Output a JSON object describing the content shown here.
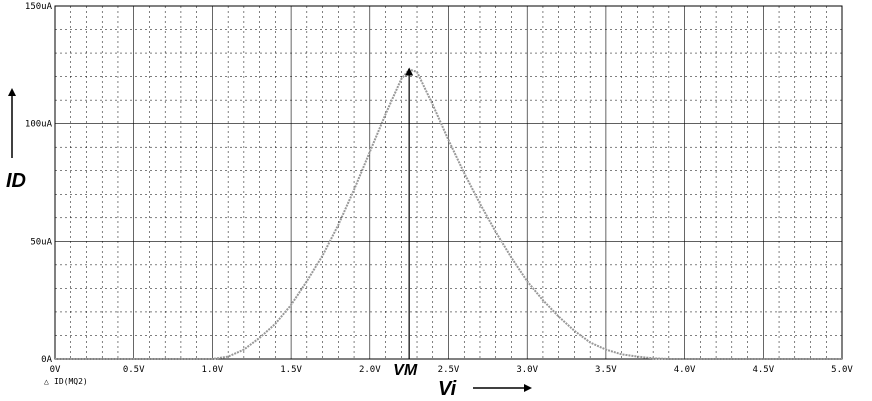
{
  "chart_data": {
    "type": "line",
    "x_range": [
      0,
      5.0
    ],
    "y_range": [
      0,
      150
    ],
    "x_ticks": [
      0,
      0.5,
      1.0,
      1.5,
      2.0,
      2.5,
      3.0,
      3.5,
      4.0,
      4.5,
      5.0
    ],
    "x_tick_labels": [
      "0V",
      "0.5V",
      "1.0V",
      "1.5V",
      "2.0V",
      "2.5V",
      "3.0V",
      "3.5V",
      "4.0V",
      "4.5V",
      "5.0V"
    ],
    "y_ticks": [
      0,
      50,
      100,
      150
    ],
    "y_tick_labels": [
      "0A",
      "50uA",
      "100uA",
      "150uA"
    ],
    "xlabel": "Vi",
    "ylabel": "ID",
    "grid": true,
    "series": [
      {
        "name": "ID(MQ2)",
        "color": "#999999",
        "x": [
          0,
          0.9,
          1.0,
          1.1,
          1.2,
          1.3,
          1.4,
          1.5,
          1.6,
          1.7,
          1.8,
          1.9,
          2.0,
          2.1,
          2.2,
          2.25,
          2.3,
          2.4,
          2.5,
          2.6,
          2.7,
          2.8,
          2.9,
          3.0,
          3.1,
          3.2,
          3.3,
          3.4,
          3.5,
          3.6,
          3.7,
          3.8,
          3.9,
          4.0,
          5.0
        ],
        "y": [
          0,
          0,
          0,
          1,
          4,
          9,
          15,
          23,
          33,
          44,
          57,
          72,
          88,
          104,
          119,
          123,
          122,
          108,
          93,
          79,
          66,
          54,
          43,
          33,
          25,
          18,
          12,
          7,
          4,
          2,
          1,
          0.3,
          0,
          0,
          0
        ]
      }
    ],
    "annotation": {
      "label": "VM",
      "x": 2.25
    }
  },
  "legend": {
    "marker": "triangle-icon",
    "label": "ID(MQ2)"
  }
}
